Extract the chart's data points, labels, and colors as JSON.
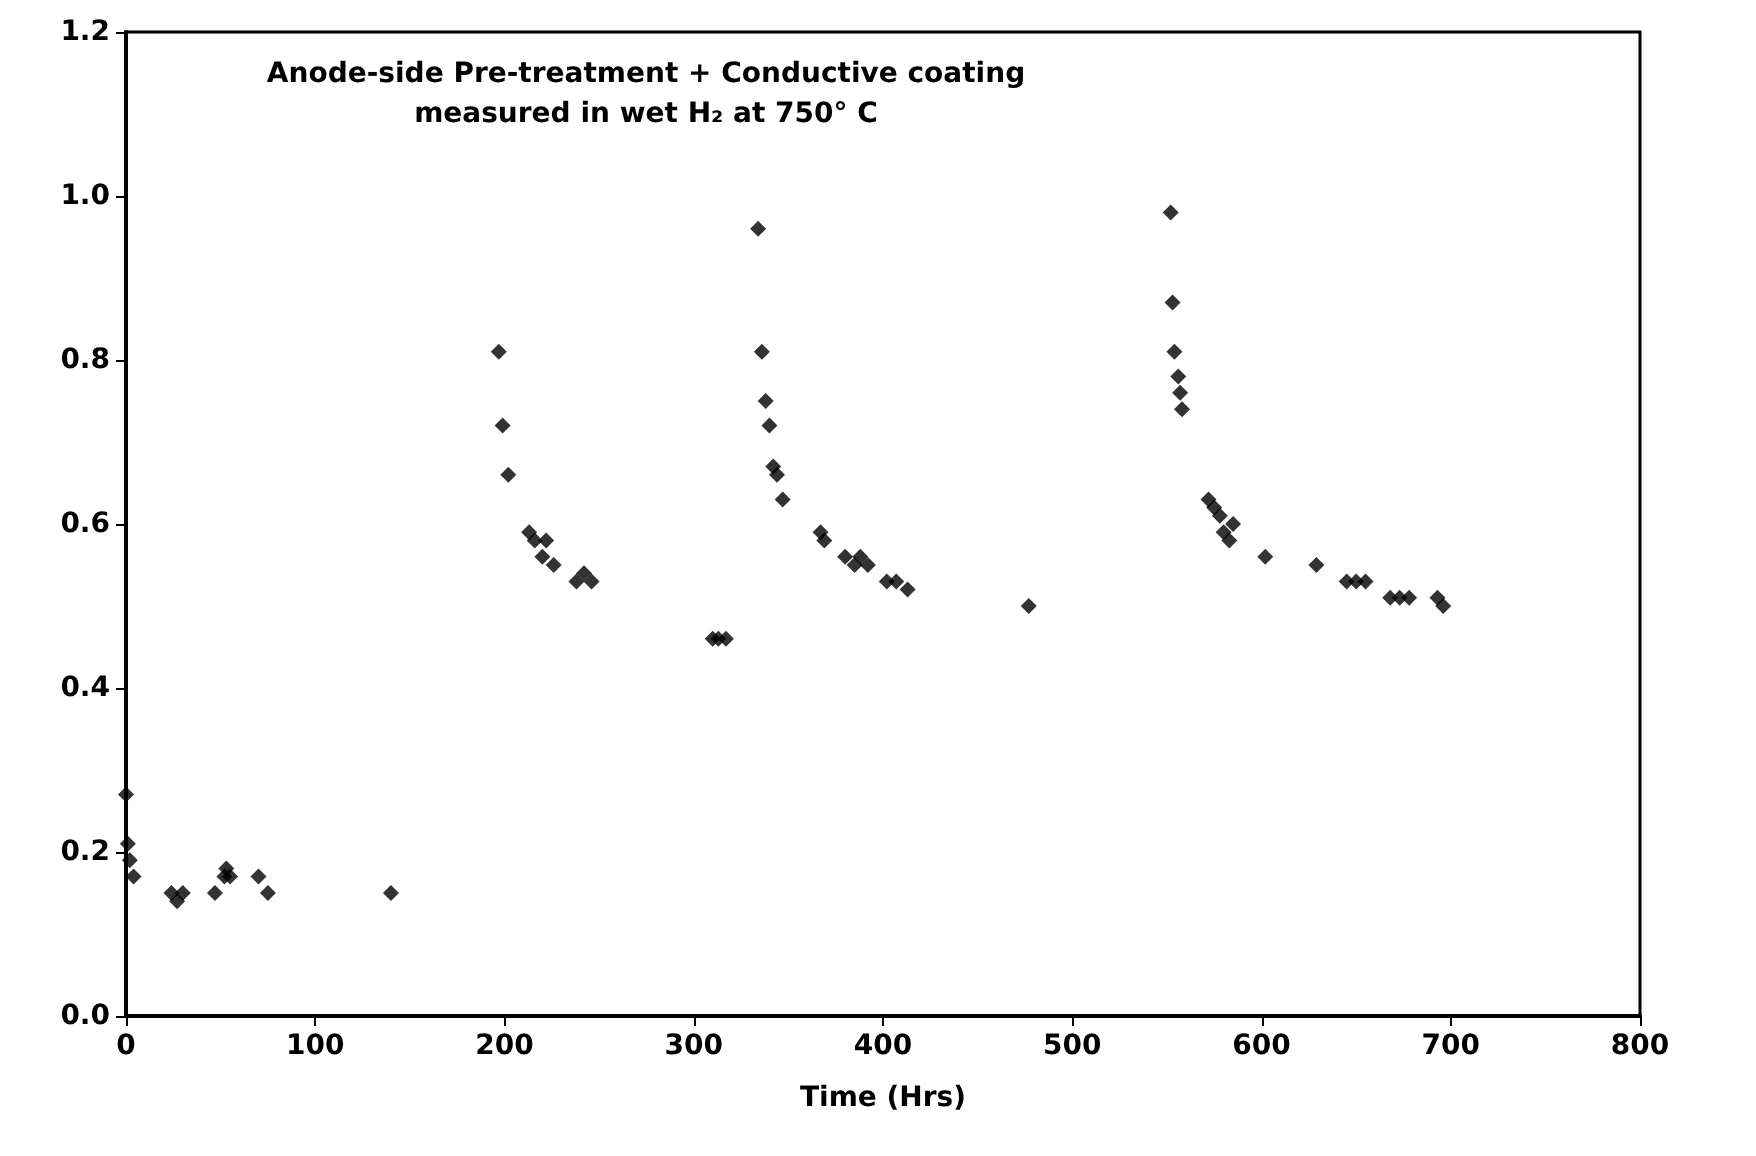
{
  "chart_data": {
    "type": "scatter",
    "title": "Anode-side Pre-treatment + Conductive coating\nmeasured in wet H₂ at 750° C",
    "xlabel": "Time (Hrs)",
    "marker": "diamond",
    "xlim": [
      0,
      800
    ],
    "xticks": [
      0,
      100,
      200,
      300,
      400,
      500,
      600,
      700,
      800
    ],
    "ylim": [
      0,
      1.2
    ],
    "yticks": [
      {
        "value": 0,
        "label": "0.0"
      },
      0.2,
      0.4,
      0.6,
      0.8,
      {
        "value": 1,
        "label": "1.0"
      },
      1.2
    ],
    "series": [
      {
        "color": "#000000",
        "x": [
          0,
          1,
          2,
          4,
          24,
          27,
          30,
          47,
          52,
          53,
          55,
          70,
          75,
          140,
          197,
          199,
          202,
          213,
          216,
          222,
          220,
          226,
          238,
          242,
          246,
          310,
          313,
          317,
          334,
          336,
          338,
          340,
          342,
          344,
          347,
          367,
          369,
          380,
          385,
          388,
          392,
          402,
          407,
          413,
          477,
          552,
          553,
          554,
          556,
          557,
          558,
          572,
          575,
          578,
          580,
          583,
          585,
          602,
          629,
          645,
          650,
          655,
          668,
          673,
          678,
          693,
          696
        ],
        "values": [
          0.27,
          0.21,
          0.19,
          0.17,
          0.15,
          0.14,
          0.15,
          0.15,
          0.17,
          0.18,
          0.17,
          0.17,
          0.15,
          0.15,
          0.81,
          0.72,
          0.66,
          0.59,
          0.58,
          0.58,
          0.56,
          0.55,
          0.53,
          0.54,
          0.53,
          0.46,
          0.46,
          0.46,
          0.96,
          0.81,
          0.75,
          0.72,
          0.67,
          0.66,
          0.63,
          0.59,
          0.58,
          0.56,
          0.55,
          0.56,
          0.55,
          0.53,
          0.53,
          0.52,
          0.5,
          0.98,
          0.87,
          0.81,
          0.78,
          0.76,
          0.74,
          0.63,
          0.62,
          0.61,
          0.59,
          0.58,
          0.6,
          0.56,
          0.55,
          0.53,
          0.53,
          0.53,
          0.51,
          0.51,
          0.51,
          0.51,
          0.5
        ]
      }
    ]
  }
}
